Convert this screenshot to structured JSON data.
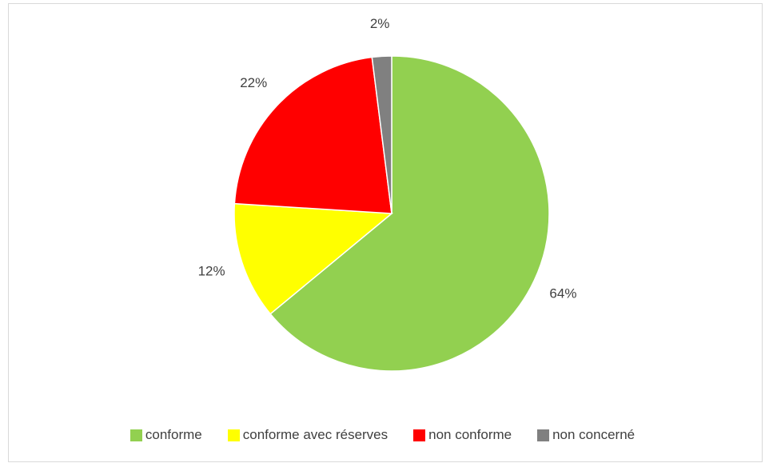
{
  "chart_data": {
    "type": "pie",
    "title": "",
    "legend_position": "bottom",
    "start_angle_deg": 0,
    "direction": "clockwise",
    "slices": [
      {
        "name": "conforme",
        "value": 64,
        "label": "64%",
        "color": "#92d050"
      },
      {
        "name": "conforme avec réserves",
        "value": 12,
        "label": "12%",
        "color": "#ffff00"
      },
      {
        "name": "non conforme",
        "value": 22,
        "label": "22%",
        "color": "#ff0000"
      },
      {
        "name": "non concerné",
        "value": 2,
        "label": "2%",
        "color": "#808080"
      }
    ]
  }
}
